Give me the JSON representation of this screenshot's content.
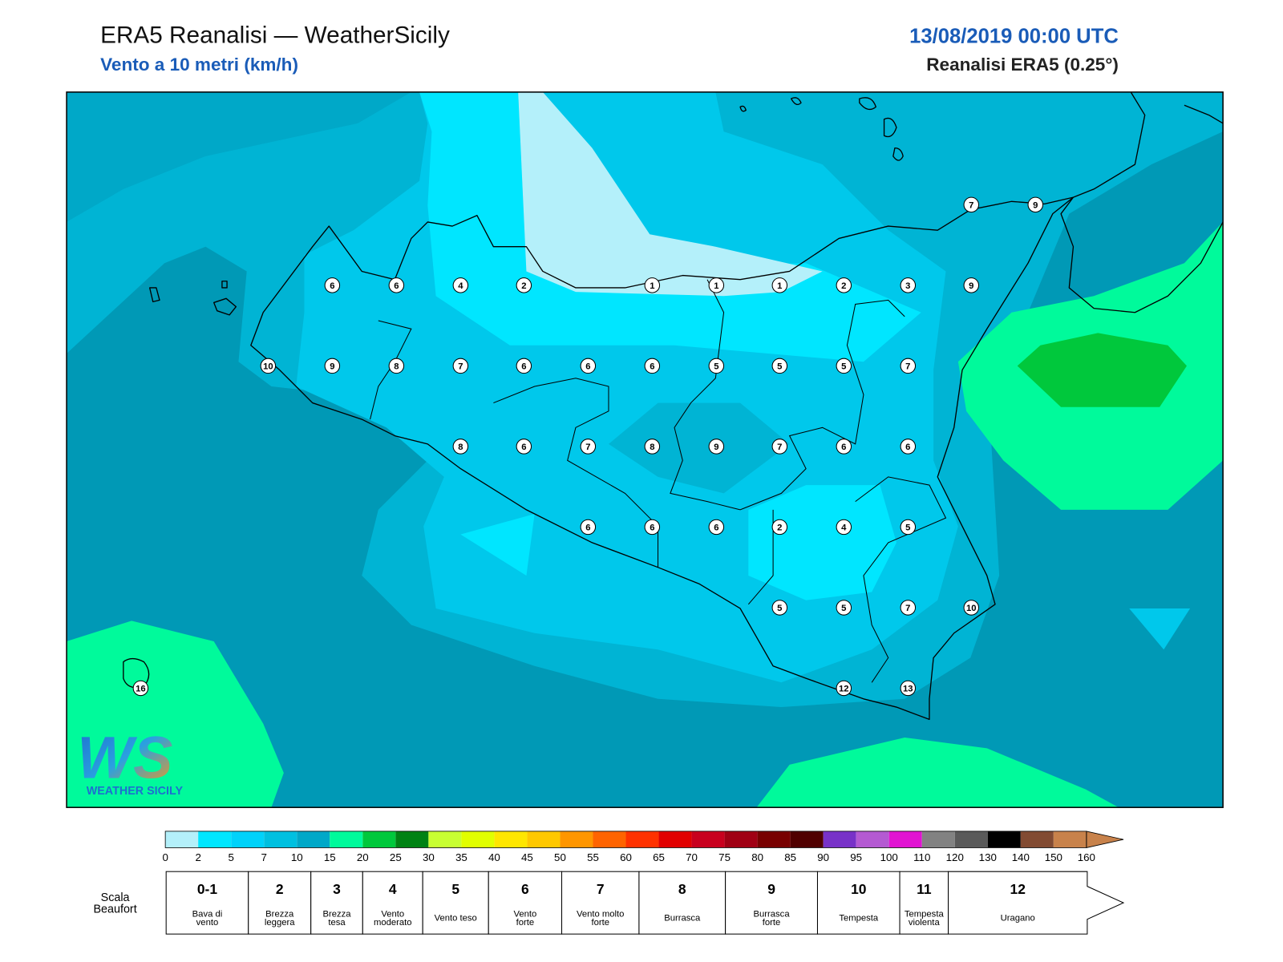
{
  "header": {
    "title": "ERA5 Reanalisi — WeatherSicily",
    "subtitle": "Vento a 10 metri (km/h)",
    "date": "13/08/2019 00:00 UTC",
    "source": "Reanalisi ERA5 (0.25°)"
  },
  "stations": {
    "values": [
      7,
      9,
      6,
      6,
      4,
      2,
      1,
      1,
      1,
      2,
      3,
      9,
      10,
      9,
      8,
      7,
      6,
      6,
      6,
      5,
      5,
      5,
      7,
      8,
      6,
      7,
      8,
      9,
      7,
      6,
      6,
      6,
      6,
      6,
      2,
      4,
      5,
      5,
      5,
      7,
      10,
      12,
      13,
      16
    ]
  },
  "logo": {
    "mark": "WS",
    "text": "WEATHER SICILY"
  },
  "colorbar": {
    "ticks": [
      0,
      2,
      5,
      7,
      10,
      15,
      20,
      25,
      30,
      35,
      40,
      45,
      50,
      55,
      60,
      65,
      70,
      75,
      80,
      85,
      90,
      95,
      100,
      110,
      120,
      130,
      140,
      150,
      160
    ],
    "colors": [
      "#b4f0fa",
      "#00e6ff",
      "#00d2fa",
      "#00c0e0",
      "#00a8c8",
      "#00fa9b",
      "#00c83c",
      "#008214",
      "#c8ff32",
      "#e1ff00",
      "#ffe600",
      "#ffc800",
      "#ff9600",
      "#ff6400",
      "#ff3200",
      "#e10000",
      "#c8001e",
      "#a00014",
      "#780000",
      "#500000",
      "#7832c8",
      "#b45ad2",
      "#e114d2",
      "#828282",
      "#5a5a5a",
      "#000000",
      "#824b32",
      "#c8824b"
    ]
  },
  "beaufort": {
    "label": [
      "Scala",
      "Beaufort"
    ],
    "levels": [
      {
        "force": "0-1",
        "description": [
          "Bava di",
          "vento"
        ]
      },
      {
        "force": 2,
        "description": [
          "Brezza",
          "leggera"
        ]
      },
      {
        "force": 3,
        "description": [
          "Brezza",
          "tesa"
        ]
      },
      {
        "force": 4,
        "description": [
          "Vento",
          "moderato"
        ]
      },
      {
        "force": 5,
        "description": [
          "Vento teso"
        ]
      },
      {
        "force": 6,
        "description": [
          "Vento",
          "forte"
        ]
      },
      {
        "force": 7,
        "description": [
          "Vento molto",
          "forte"
        ]
      },
      {
        "force": 8,
        "description": [
          "Burrasca"
        ]
      },
      {
        "force": 9,
        "description": [
          "Burrasca",
          "forte"
        ]
      },
      {
        "force": 10,
        "description": [
          "Tempesta"
        ]
      },
      {
        "force": 11,
        "description": [
          "Tempesta",
          "violenta"
        ]
      },
      {
        "force": 12,
        "description": [
          "Uragano"
        ]
      }
    ]
  }
}
